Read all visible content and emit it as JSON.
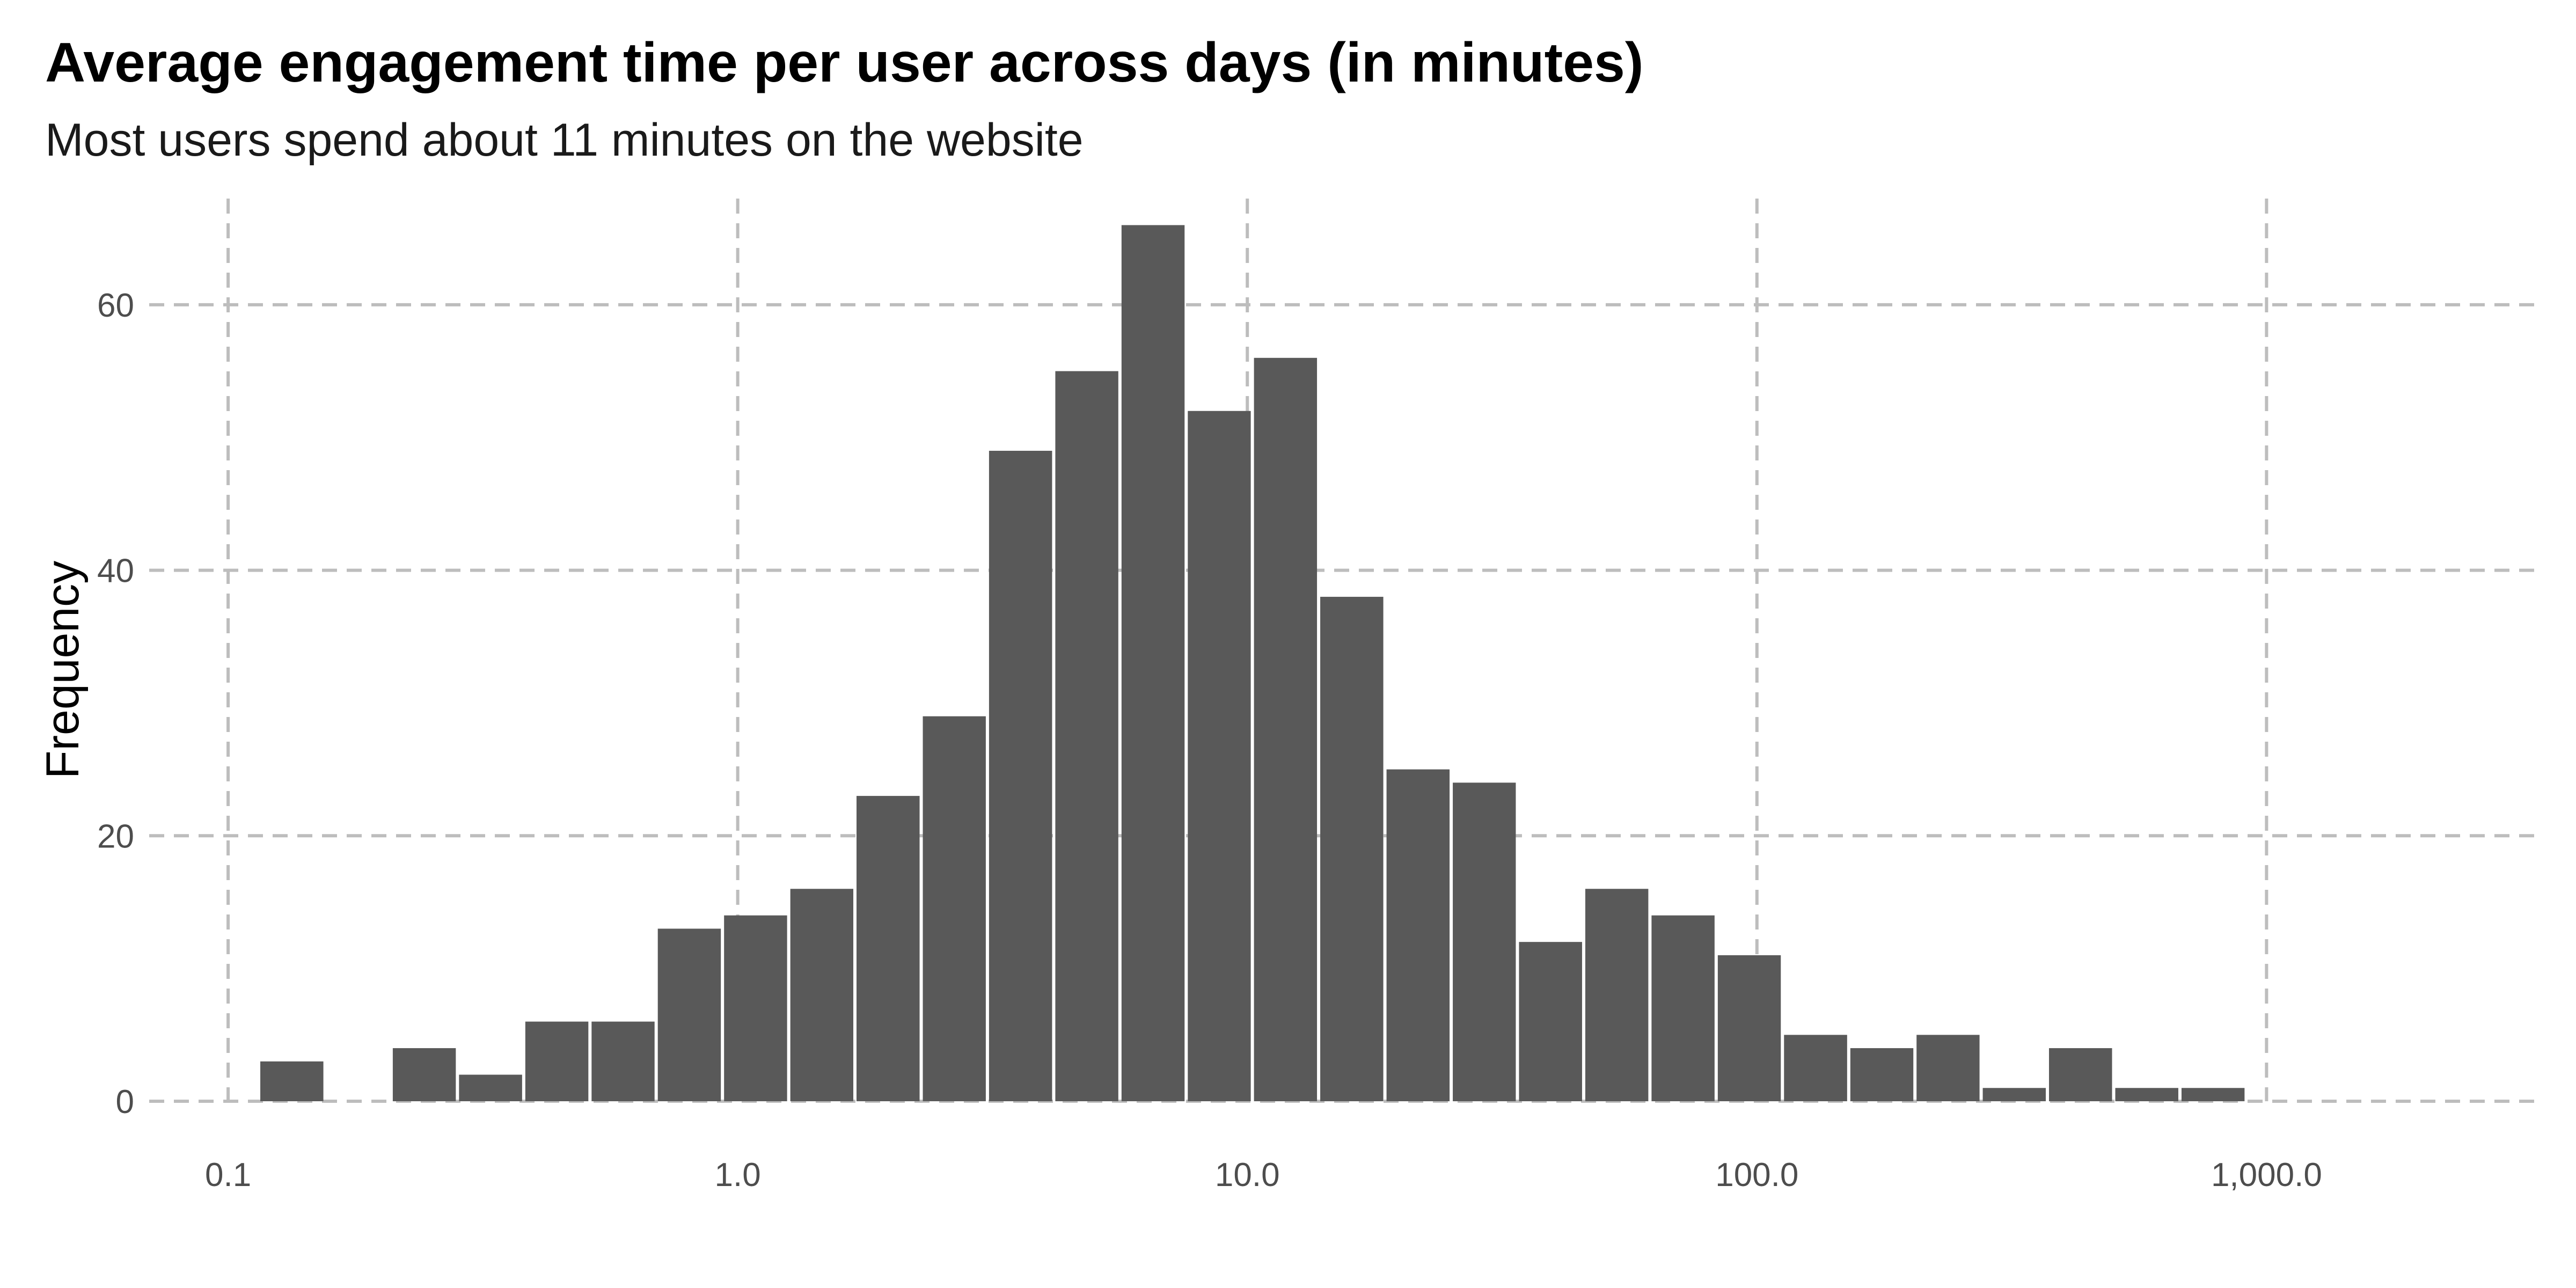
{
  "chart_data": {
    "type": "bar",
    "title": "Average engagement time per user across days (in minutes)",
    "subtitle": "Most users spend about 11 minutes on the website",
    "xlabel": "",
    "ylabel": "Frequency",
    "x_scale": "log10",
    "xlim": [
      0.07,
      3500
    ],
    "ylim": [
      0,
      68
    ],
    "x_ticks": [
      0.1,
      1,
      10,
      100,
      1000
    ],
    "x_tick_labels": [
      "0.1",
      "1.0",
      "10.0",
      "100.0",
      "1,000.0"
    ],
    "y_ticks": [
      0,
      20,
      40,
      60
    ],
    "y_tick_labels": [
      "0",
      "20",
      "40",
      "60"
    ],
    "grid": true,
    "grid_style": "dashed",
    "bar_color": "#595959",
    "grid_color": "#bdbdbd",
    "bins": [
      {
        "x_start": 0.1148,
        "x_end": 0.1549,
        "count": 3
      },
      {
        "x_start": 0.1549,
        "x_end": 0.2089,
        "count": 0
      },
      {
        "x_start": 0.2089,
        "x_end": 0.2818,
        "count": 4
      },
      {
        "x_start": 0.2818,
        "x_end": 0.3802,
        "count": 2
      },
      {
        "x_start": 0.3802,
        "x_end": 0.5129,
        "count": 6
      },
      {
        "x_start": 0.5129,
        "x_end": 0.6918,
        "count": 6
      },
      {
        "x_start": 0.6918,
        "x_end": 0.9333,
        "count": 13
      },
      {
        "x_start": 0.9333,
        "x_end": 1.259,
        "count": 14
      },
      {
        "x_start": 1.259,
        "x_end": 1.698,
        "count": 16
      },
      {
        "x_start": 1.698,
        "x_end": 2.291,
        "count": 23
      },
      {
        "x_start": 2.291,
        "x_end": 3.09,
        "count": 29
      },
      {
        "x_start": 3.09,
        "x_end": 4.169,
        "count": 49
      },
      {
        "x_start": 4.169,
        "x_end": 5.623,
        "count": 55
      },
      {
        "x_start": 5.623,
        "x_end": 7.586,
        "count": 66
      },
      {
        "x_start": 7.586,
        "x_end": 10.23,
        "count": 52
      },
      {
        "x_start": 10.23,
        "x_end": 13.8,
        "count": 56
      },
      {
        "x_start": 13.8,
        "x_end": 18.62,
        "count": 38
      },
      {
        "x_start": 18.62,
        "x_end": 25.12,
        "count": 25
      },
      {
        "x_start": 25.12,
        "x_end": 33.88,
        "count": 24
      },
      {
        "x_start": 33.88,
        "x_end": 45.71,
        "count": 12
      },
      {
        "x_start": 45.71,
        "x_end": 61.66,
        "count": 16
      },
      {
        "x_start": 61.66,
        "x_end": 83.18,
        "count": 14
      },
      {
        "x_start": 83.18,
        "x_end": 112.2,
        "count": 11
      },
      {
        "x_start": 112.2,
        "x_end": 151.4,
        "count": 5
      },
      {
        "x_start": 151.4,
        "x_end": 204.2,
        "count": 4
      },
      {
        "x_start": 204.2,
        "x_end": 275.4,
        "count": 5
      },
      {
        "x_start": 275.4,
        "x_end": 371.5,
        "count": 1
      },
      {
        "x_start": 371.5,
        "x_end": 501.2,
        "count": 4
      },
      {
        "x_start": 501.2,
        "x_end": 676.1,
        "count": 1
      },
      {
        "x_start": 676.1,
        "x_end": 912.0,
        "count": 1
      }
    ]
  }
}
